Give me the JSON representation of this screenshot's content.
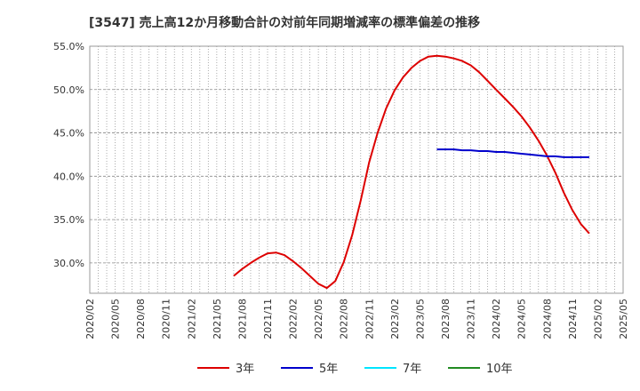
{
  "chart_data": {
    "type": "line",
    "title": "[3547]  売上高12か月移動合計の対前年同期増減率の標準偏差の推移",
    "xlabel": "",
    "ylabel": "",
    "ylim": [
      26.5,
      55.0
    ],
    "grid": true,
    "legend_position": "bottom",
    "y_ticks": [
      "55.0%",
      "50.0%",
      "45.0%",
      "40.0%",
      "35.0%",
      "30.0%"
    ],
    "y_tick_values": [
      55.0,
      50.0,
      45.0,
      40.0,
      35.0,
      30.0
    ],
    "x_ticks": [
      "2020/02",
      "2020/05",
      "2020/08",
      "2020/11",
      "2021/02",
      "2021/05",
      "2021/08",
      "2021/11",
      "2022/02",
      "2022/05",
      "2022/08",
      "2022/11",
      "2023/02",
      "2023/05",
      "2023/08",
      "2023/11",
      "2024/02",
      "2024/05",
      "2024/08",
      "2024/11",
      "2025/02",
      "2025/05"
    ],
    "x_range": [
      "2020/02",
      "2025/05"
    ],
    "series": [
      {
        "name": "3年",
        "color": "#dd0000",
        "x": [
          "2021/07",
          "2021/08",
          "2021/09",
          "2021/10",
          "2021/11",
          "2021/12",
          "2022/01",
          "2022/02",
          "2022/03",
          "2022/04",
          "2022/05",
          "2022/06",
          "2022/07",
          "2022/08",
          "2022/09",
          "2022/10",
          "2022/11",
          "2022/12",
          "2023/01",
          "2023/02",
          "2023/03",
          "2023/04",
          "2023/05",
          "2023/06",
          "2023/07",
          "2023/08",
          "2023/09",
          "2023/10",
          "2023/11",
          "2023/12",
          "2024/01",
          "2024/02",
          "2024/03",
          "2024/04",
          "2024/05",
          "2024/06",
          "2024/07",
          "2024/08",
          "2024/09",
          "2024/10",
          "2024/11",
          "2024/12",
          "2025/01",
          "2025/02"
        ],
        "values": [
          28.5,
          29.3,
          30.0,
          30.6,
          31.1,
          31.2,
          30.9,
          30.2,
          29.4,
          28.5,
          27.6,
          27.1,
          27.9,
          30.1,
          33.2,
          37.2,
          41.6,
          45.0,
          47.8,
          49.9,
          51.4,
          52.5,
          53.3,
          53.8,
          53.9,
          53.8,
          53.6,
          53.3,
          52.8,
          52.0,
          51.0,
          50.0,
          49.0,
          48.0,
          46.9,
          45.6,
          44.1,
          42.4,
          40.4,
          38.1,
          36.1,
          34.5,
          33.4,
          null
        ]
      },
      {
        "name": "5年",
        "color": "#0000cc",
        "x": [
          "2023/07",
          "2023/08",
          "2023/09",
          "2023/10",
          "2023/11",
          "2023/12",
          "2024/01",
          "2024/02",
          "2024/03",
          "2024/04",
          "2024/05",
          "2024/06",
          "2024/07",
          "2024/08",
          "2024/09",
          "2024/10",
          "2024/11",
          "2024/12",
          "2025/01",
          "2025/02"
        ],
        "values": [
          43.1,
          43.1,
          43.1,
          43.0,
          43.0,
          42.9,
          42.9,
          42.8,
          42.8,
          42.7,
          42.6,
          42.5,
          42.4,
          42.3,
          42.3,
          42.2,
          42.2,
          42.2,
          42.2,
          null
        ]
      },
      {
        "name": "7年",
        "color": "#00e5ff",
        "x": [],
        "values": []
      },
      {
        "name": "10年",
        "color": "#228b22",
        "x": [],
        "values": []
      }
    ]
  }
}
